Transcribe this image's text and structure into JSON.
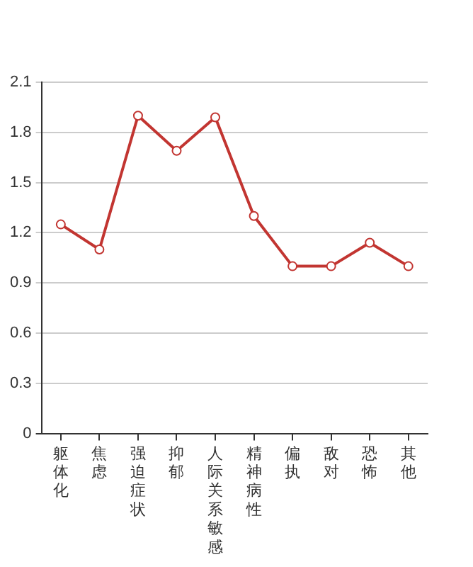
{
  "chart_data": {
    "type": "line",
    "categories": [
      "躯体化",
      "焦虑",
      "强迫症状",
      "抑郁",
      "人际关系敏感",
      "精神病性",
      "偏执",
      "敌对",
      "恐怖",
      "其他"
    ],
    "series": [
      {
        "color": "#c23531",
        "values": [
          1.25,
          1.1,
          1.9,
          1.69,
          1.89,
          1.3,
          1.0,
          1.0,
          1.14,
          1.0
        ]
      }
    ],
    "ylim": [
      0,
      2.1
    ],
    "yticks": [
      0,
      0.3,
      0.6,
      0.9,
      1.2,
      1.5,
      1.8,
      2.1
    ],
    "grid": "y",
    "legend": false,
    "marker": "circle",
    "line_style": "solid"
  }
}
